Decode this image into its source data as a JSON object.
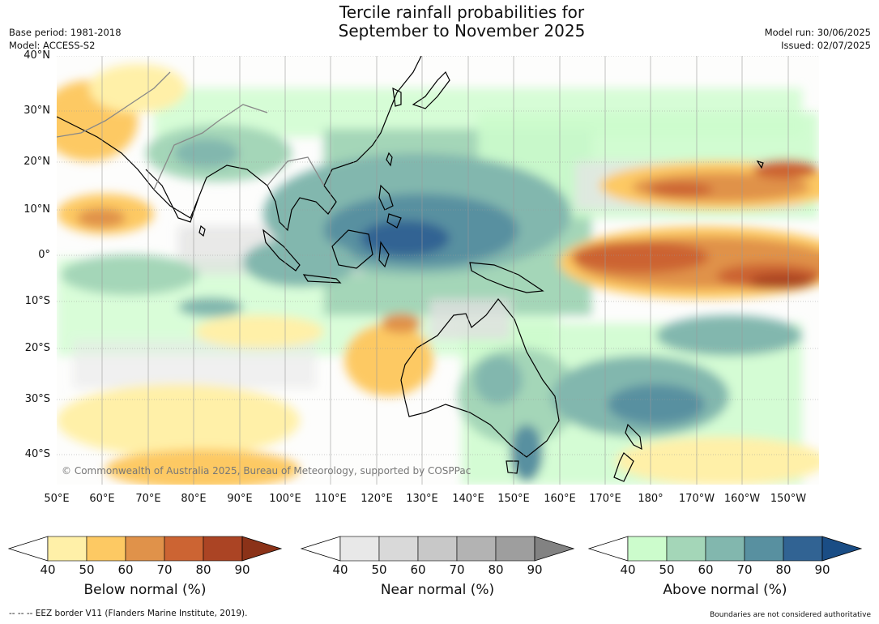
{
  "header": {
    "title_line1": "Tercile rainfall probabilities for",
    "title_line2": "September to November 2025",
    "base_period": "Base period: 1981-2018",
    "model": "Model: ACCESS-S2",
    "model_run": "Model run: 30/06/2025",
    "issued": "Issued: 02/07/2025"
  },
  "map": {
    "copyright": "© Commonwealth of Australia 2025, Bureau of Meteorology, supported by COSPPac",
    "lat_labels": [
      "40°N",
      "30°N",
      "20°N",
      "10°N",
      "0°",
      "10°S",
      "20°S",
      "30°S",
      "40°S"
    ],
    "lon_labels": [
      "50°E",
      "60°E",
      "70°E",
      "80°E",
      "90°E",
      "100°E",
      "110°E",
      "120°E",
      "130°E",
      "140°E",
      "150°E",
      "160°E",
      "170°E",
      "180°",
      "170°W",
      "160°W",
      "150°W"
    ]
  },
  "colorbars": [
    {
      "label": "Below normal (%)",
      "ticks": [
        "40",
        "50",
        "60",
        "70",
        "80",
        "90"
      ],
      "colors": [
        "#fff0a8",
        "#fdc963",
        "#e0924a",
        "#cc6433",
        "#ab4424",
        "#8b3218"
      ]
    },
    {
      "label": "Near normal (%)",
      "ticks": [
        "40",
        "50",
        "60",
        "70",
        "80",
        "90"
      ],
      "colors": [
        "#e8e8e8",
        "#d9d9d9",
        "#c8c8c8",
        "#b3b3b3",
        "#9e9e9e",
        "#828282"
      ]
    },
    {
      "label": "Above normal (%)",
      "ticks": [
        "40",
        "50",
        "60",
        "70",
        "80",
        "90"
      ],
      "colors": [
        "#ccfccc",
        "#a4d6b8",
        "#82b7ae",
        "#5890a0",
        "#316393",
        "#1a4d85"
      ]
    }
  ],
  "footer": {
    "eez_note": "--  --  -- EEZ border V11 (Flanders Marine Institute, 2019).",
    "boundary_note": "Boundaries are not considered authoritative"
  }
}
